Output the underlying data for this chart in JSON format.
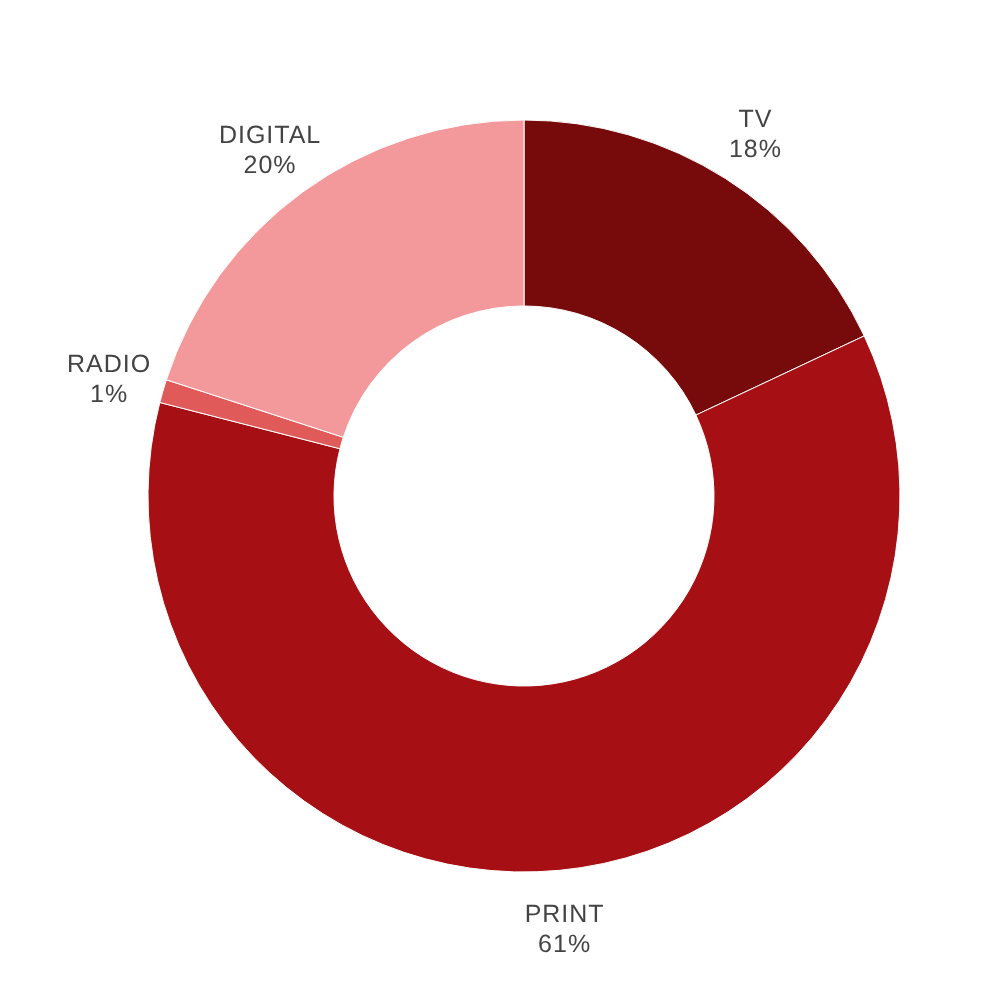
{
  "chart_data": {
    "type": "donut",
    "categories": [
      "TV",
      "PRINT",
      "RADIO",
      "DIGITAL"
    ],
    "values": [
      18,
      61,
      1,
      20
    ],
    "colors": [
      "#770a0a",
      "#a60f14",
      "#e05a5a",
      "#f4999b"
    ],
    "value_labels": [
      "18%",
      "61%",
      "1%",
      "20%"
    ]
  }
}
